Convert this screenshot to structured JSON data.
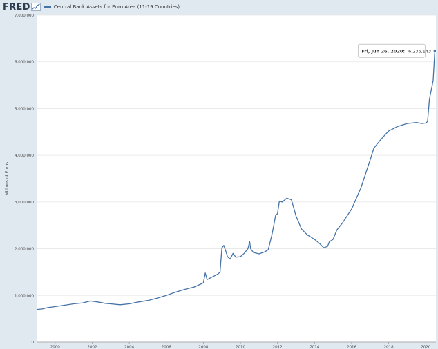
{
  "header": {
    "logo_text": "FRED",
    "legend_label": "Central Bank Assets for Euro Area (11-19 Countries)"
  },
  "colors": {
    "series": "#4572a7",
    "background": "#e1e9f0",
    "plot_background": "#ffffff",
    "grid": "#e6e6e6"
  },
  "tooltip": {
    "date_label": "Fri, Jun 26, 2020:",
    "value_label": "6,236,143"
  },
  "chart_data": {
    "type": "line",
    "ylabel": "Millions of Euros",
    "xlabel": "",
    "ylim": [
      0,
      7000000
    ],
    "xlim": [
      1999.0,
      2020.55
    ],
    "y_ticks": [
      0,
      1000000,
      2000000,
      3000000,
      4000000,
      5000000,
      6000000,
      7000000
    ],
    "y_tick_labels": [
      "0",
      "1,000,000",
      "2,000,000",
      "3,000,000",
      "4,000,000",
      "5,000,000",
      "6,000,000",
      "7,000,000"
    ],
    "x_ticks": [
      2000,
      2002,
      2004,
      2006,
      2008,
      2010,
      2012,
      2014,
      2016,
      2018,
      2020
    ],
    "x_tick_labels": [
      "2000",
      "2002",
      "2004",
      "2006",
      "2008",
      "2010",
      "2012",
      "2014",
      "2016",
      "2018",
      "2020"
    ],
    "grid": true,
    "series": [
      {
        "x": [
          1999.0,
          1999.3,
          1999.6,
          2000.0,
          2000.5,
          2001.0,
          2001.5,
          2001.9,
          2002.3,
          2002.7,
          2003.0,
          2003.5,
          2004.0,
          2004.5,
          2005.0,
          2005.5,
          2006.0,
          2006.5,
          2007.0,
          2007.5,
          2007.9,
          2008.0,
          2008.1,
          2008.2,
          2008.5,
          2008.8,
          2008.9,
          2009.0,
          2009.1,
          2009.2,
          2009.3,
          2009.45,
          2009.6,
          2009.75,
          2010.0,
          2010.2,
          2010.4,
          2010.5,
          2010.55,
          2010.7,
          2011.0,
          2011.3,
          2011.5,
          2011.7,
          2011.8,
          2011.9,
          2012.0,
          2012.1,
          2012.25,
          2012.5,
          2012.75,
          2013.0,
          2013.3,
          2013.6,
          2014.0,
          2014.3,
          2014.5,
          2014.7,
          2014.8,
          2015.0,
          2015.2,
          2015.5,
          2016.0,
          2016.5,
          2017.0,
          2017.2,
          2017.6,
          2018.0,
          2018.5,
          2019.0,
          2019.5,
          2019.8,
          2020.0,
          2020.1,
          2020.2,
          2020.3,
          2020.4,
          2020.49
        ],
        "values": [
          700000,
          710000,
          740000,
          760000,
          790000,
          820000,
          840000,
          880000,
          860000,
          830000,
          820000,
          800000,
          820000,
          860000,
          890000,
          940000,
          1000000,
          1070000,
          1130000,
          1180000,
          1250000,
          1270000,
          1480000,
          1340000,
          1400000,
          1460000,
          1500000,
          2020000,
          2070000,
          1960000,
          1830000,
          1780000,
          1900000,
          1820000,
          1830000,
          1900000,
          2000000,
          2150000,
          2000000,
          1920000,
          1890000,
          1930000,
          1980000,
          2300000,
          2500000,
          2720000,
          2750000,
          3020000,
          3000000,
          3080000,
          3050000,
          2700000,
          2420000,
          2300000,
          2200000,
          2100000,
          2020000,
          2050000,
          2150000,
          2200000,
          2400000,
          2550000,
          2850000,
          3300000,
          3900000,
          4150000,
          4350000,
          4520000,
          4620000,
          4680000,
          4700000,
          4680000,
          4690000,
          4720000,
          5200000,
          5400000,
          5600000,
          6236143
        ]
      }
    ]
  }
}
